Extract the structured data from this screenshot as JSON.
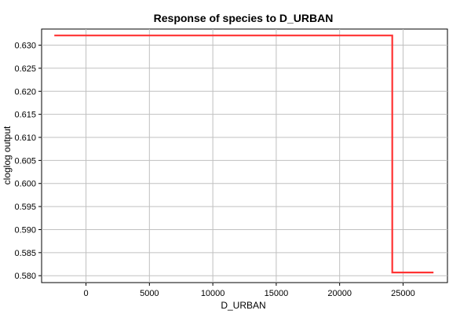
{
  "chart_data": {
    "type": "line",
    "title": "Response of species to D_URBAN",
    "xlabel": "D_URBAN",
    "ylabel": "cloglog output",
    "xlim": [
      -3500,
      28500
    ],
    "ylim": [
      0.5785,
      0.6335
    ],
    "x_ticks": [
      0,
      5000,
      10000,
      15000,
      20000,
      25000
    ],
    "y_ticks": [
      0.58,
      0.585,
      0.59,
      0.595,
      0.6,
      0.605,
      0.61,
      0.615,
      0.62,
      0.625,
      0.63
    ],
    "y_tick_labels": [
      "0.580",
      "0.585",
      "0.590",
      "0.595",
      "0.600",
      "0.605",
      "0.610",
      "0.615",
      "0.620",
      "0.625",
      "0.630"
    ],
    "grid": true,
    "series": [
      {
        "color": "#ff3333",
        "x": [
          -2500,
          24150,
          24150,
          27400
        ],
        "y": [
          0.6321,
          0.6321,
          0.5807,
          0.5807
        ]
      }
    ]
  }
}
